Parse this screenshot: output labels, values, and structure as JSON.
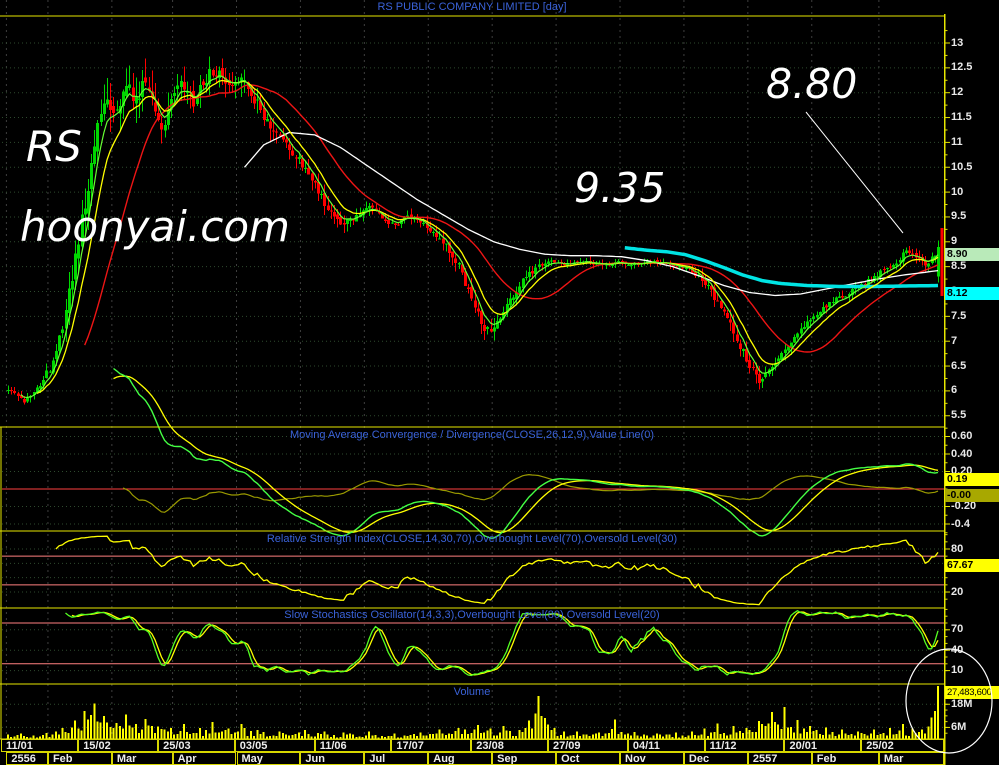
{
  "chart_data": {
    "type": "candlestick",
    "title": "RS PUBLIC COMPANY LIMITED [day]",
    "bars_total": 292,
    "y_axis": {
      "min": 5.5,
      "max": 13,
      "step": 0.5
    },
    "panels": {
      "macd": {
        "title": "Moving Average Convergence / Divergence(CLOSE,26,12,9),Value Line(0)"
      },
      "rsi": {
        "title": "Relative Strength Index(CLOSE,14,30,70),Overbought Level(70),Oversold Level(30)"
      },
      "stoch": {
        "title": "Slow Stochastics Oscillator(14,3,3),Overbought Level(80),Oversold Level(20)"
      },
      "volume": {
        "title": "Volume"
      }
    },
    "axis_labels": {
      "macd": [
        [
          "0.60",
          0.6
        ],
        [
          "0.40",
          0.4
        ],
        [
          "0.20",
          0.2
        ],
        [
          "-0.20",
          -0.2
        ],
        [
          "-0.4",
          -0.4
        ]
      ],
      "rsi": [
        [
          "80",
          80
        ],
        [
          "20",
          20
        ]
      ],
      "stoch": [
        [
          "70",
          70
        ],
        [
          "40",
          40
        ],
        [
          "10",
          10
        ]
      ],
      "volume": [
        [
          "18M",
          18
        ],
        [
          "6M",
          6
        ]
      ]
    },
    "levels": {
      "macd_zero": 0,
      "rsi": [
        70,
        30
      ],
      "stoch": [
        80,
        20
      ]
    },
    "tags": [
      {
        "id": "price",
        "text": "8.90",
        "bg": "#b9eab9",
        "value": 8.9
      },
      {
        "id": "ma200",
        "text": "8.12",
        "bg": "#00ffff",
        "value": 8.12
      },
      {
        "id": "macd",
        "text": "0.19",
        "bg": "#ffff00",
        "value": 0.19
      },
      {
        "id": "macd_zero",
        "text": "-0.00",
        "bg": "#a8a800",
        "value": 0.0
      },
      {
        "id": "rsi",
        "text": "67.67",
        "bg": "#ffff00",
        "value": 67.67
      },
      {
        "id": "volume",
        "text": "27,483,600",
        "bg": "#ffff00",
        "value": 27.4836
      }
    ],
    "annotations": {
      "ticker": "RS",
      "site": "hoonyai.com",
      "level1": "9.35",
      "level2": "8.80"
    },
    "months": {
      "labels": [
        "2556",
        "Feb",
        "Mar",
        "Apr",
        "May",
        "Jun",
        "Jul",
        "Aug",
        "Sep",
        "Oct",
        "Nov",
        "Dec",
        "2557",
        "Feb",
        "Mar"
      ],
      "start_bars": [
        0,
        13,
        33,
        52,
        72,
        92,
        112,
        132,
        152,
        172,
        192,
        212,
        232,
        252,
        273
      ]
    },
    "date_ticks": {
      "labels": [
        "11/01",
        "15/02",
        "25/03",
        "03/05",
        "11/06",
        "17/07",
        "23/08",
        "27/09",
        "04/11",
        "11/12",
        "20/01",
        "25/02"
      ],
      "bars": [
        0,
        24,
        49,
        73,
        98,
        122,
        147,
        171,
        196,
        220,
        245,
        269
      ]
    },
    "series_anchors": {
      "close": [
        [
          0,
          6.05,
          0.1
        ],
        [
          5,
          5.8,
          0.12
        ],
        [
          10,
          6.15,
          0.15
        ],
        [
          13,
          6.45,
          0.2
        ],
        [
          17,
          7.3,
          0.3
        ],
        [
          21,
          8.6,
          0.4
        ],
        [
          25,
          10.2,
          0.45
        ],
        [
          28,
          11.3,
          0.45
        ],
        [
          31,
          11.9,
          0.45
        ],
        [
          34,
          11.5,
          0.45
        ],
        [
          37,
          12.2,
          0.4
        ],
        [
          40,
          11.8,
          0.42
        ],
        [
          43,
          12.35,
          0.38
        ],
        [
          46,
          11.6,
          0.4
        ],
        [
          49,
          11.2,
          0.38
        ],
        [
          51,
          11.9,
          0.35
        ],
        [
          54,
          12.15,
          0.3
        ],
        [
          58,
          11.8,
          0.3
        ],
        [
          62,
          12.3,
          0.3
        ],
        [
          66,
          12.5,
          0.28
        ],
        [
          69,
          12.2,
          0.28
        ],
        [
          73,
          12.3,
          0.3
        ],
        [
          77,
          11.9,
          0.28
        ],
        [
          81,
          11.4,
          0.25
        ],
        [
          85,
          11.1,
          0.22
        ],
        [
          89,
          10.8,
          0.2
        ],
        [
          93,
          10.45,
          0.2
        ],
        [
          97,
          10.0,
          0.2
        ],
        [
          101,
          9.6,
          0.18
        ],
        [
          105,
          9.35,
          0.16
        ],
        [
          109,
          9.55,
          0.15
        ],
        [
          113,
          9.7,
          0.14
        ],
        [
          117,
          9.45,
          0.13
        ],
        [
          121,
          9.3,
          0.12
        ],
        [
          125,
          9.55,
          0.13
        ],
        [
          129,
          9.4,
          0.12
        ],
        [
          133,
          9.15,
          0.14
        ],
        [
          137,
          8.9,
          0.16
        ],
        [
          141,
          8.5,
          0.18
        ],
        [
          145,
          7.9,
          0.2
        ],
        [
          148,
          7.35,
          0.2
        ],
        [
          151,
          7.15,
          0.18
        ],
        [
          154,
          7.5,
          0.16
        ],
        [
          158,
          7.95,
          0.15
        ],
        [
          162,
          8.3,
          0.13
        ],
        [
          166,
          8.5,
          0.11
        ],
        [
          170,
          8.6,
          0.1
        ],
        [
          174,
          8.55,
          0.08
        ],
        [
          180,
          8.62,
          0.08
        ],
        [
          186,
          8.5,
          0.08
        ],
        [
          191,
          8.6,
          0.08
        ],
        [
          196,
          8.55,
          0.08
        ],
        [
          202,
          8.6,
          0.08
        ],
        [
          208,
          8.5,
          0.09
        ],
        [
          213,
          8.45,
          0.1
        ],
        [
          217,
          8.25,
          0.13
        ],
        [
          221,
          7.9,
          0.16
        ],
        [
          225,
          7.45,
          0.18
        ],
        [
          229,
          6.9,
          0.2
        ],
        [
          232,
          6.5,
          0.18
        ],
        [
          235,
          6.2,
          0.16
        ],
        [
          238,
          6.45,
          0.14
        ],
        [
          242,
          6.8,
          0.14
        ],
        [
          246,
          7.1,
          0.13
        ],
        [
          250,
          7.4,
          0.12
        ],
        [
          254,
          7.6,
          0.12
        ],
        [
          258,
          7.8,
          0.11
        ],
        [
          262,
          7.95,
          0.11
        ],
        [
          266,
          8.1,
          0.1
        ],
        [
          270,
          8.25,
          0.1
        ],
        [
          274,
          8.45,
          0.11
        ],
        [
          278,
          8.6,
          0.12
        ],
        [
          281,
          8.85,
          0.13
        ],
        [
          284,
          8.65,
          0.12
        ],
        [
          287,
          8.55,
          0.12
        ],
        [
          290,
          8.75,
          0.13
        ],
        [
          291,
          8.9,
          0.12
        ]
      ],
      "sma75_white": [
        [
          74,
          10.5
        ],
        [
          80,
          10.95
        ],
        [
          88,
          11.2
        ],
        [
          96,
          11.15
        ],
        [
          104,
          10.9
        ],
        [
          112,
          10.55
        ],
        [
          120,
          10.2
        ],
        [
          128,
          9.85
        ],
        [
          136,
          9.55
        ],
        [
          144,
          9.25
        ],
        [
          152,
          9.0
        ],
        [
          160,
          8.85
        ],
        [
          168,
          8.75
        ],
        [
          176,
          8.72
        ],
        [
          184,
          8.72
        ],
        [
          192,
          8.7
        ],
        [
          200,
          8.62
        ],
        [
          208,
          8.5
        ],
        [
          216,
          8.32
        ],
        [
          224,
          8.12
        ],
        [
          232,
          7.98
        ],
        [
          240,
          7.92
        ],
        [
          248,
          7.95
        ],
        [
          256,
          8.05
        ],
        [
          264,
          8.15
        ],
        [
          272,
          8.25
        ],
        [
          280,
          8.33
        ],
        [
          291,
          8.42
        ]
      ],
      "sma200_cyan": [
        [
          193,
          8.88
        ],
        [
          200,
          8.83
        ],
        [
          206,
          8.8
        ],
        [
          212,
          8.74
        ],
        [
          218,
          8.62
        ],
        [
          224,
          8.48
        ],
        [
          230,
          8.33
        ],
        [
          236,
          8.22
        ],
        [
          242,
          8.16
        ],
        [
          250,
          8.12
        ],
        [
          260,
          8.1
        ],
        [
          270,
          8.1
        ],
        [
          280,
          8.11
        ],
        [
          291,
          8.12
        ]
      ]
    },
    "volume_anchors": [
      [
        0,
        2.5
      ],
      [
        4,
        3
      ],
      [
        8,
        2
      ],
      [
        12,
        3.5
      ],
      [
        15,
        4
      ],
      [
        17,
        6
      ],
      [
        21,
        10
      ],
      [
        24,
        15
      ],
      [
        27,
        20
      ],
      [
        30,
        12
      ],
      [
        34,
        9
      ],
      [
        37,
        13
      ],
      [
        40,
        8
      ],
      [
        43,
        11
      ],
      [
        47,
        7
      ],
      [
        51,
        6
      ],
      [
        55,
        8
      ],
      [
        60,
        6
      ],
      [
        64,
        9
      ],
      [
        69,
        6
      ],
      [
        73,
        8
      ],
      [
        78,
        5
      ],
      [
        85,
        4
      ],
      [
        93,
        5
      ],
      [
        99,
        4
      ],
      [
        105,
        3.5
      ],
      [
        113,
        4
      ],
      [
        121,
        3
      ],
      [
        129,
        3.5
      ],
      [
        135,
        5
      ],
      [
        141,
        6
      ],
      [
        147,
        8
      ],
      [
        151,
        6
      ],
      [
        155,
        7
      ],
      [
        160,
        5
      ],
      [
        166,
        24
      ],
      [
        171,
        6
      ],
      [
        178,
        4
      ],
      [
        184,
        3
      ],
      [
        190,
        11
      ],
      [
        196,
        4
      ],
      [
        203,
        3
      ],
      [
        209,
        3.5
      ],
      [
        214,
        4
      ],
      [
        218,
        6
      ],
      [
        222,
        8
      ],
      [
        227,
        7
      ],
      [
        231,
        6
      ],
      [
        235,
        10
      ],
      [
        239,
        15
      ],
      [
        243,
        17
      ],
      [
        247,
        10
      ],
      [
        251,
        7
      ],
      [
        256,
        6
      ],
      [
        261,
        5
      ],
      [
        266,
        4
      ],
      [
        271,
        5
      ],
      [
        276,
        6
      ],
      [
        280,
        8
      ],
      [
        283,
        6
      ],
      [
        286,
        5
      ],
      [
        289,
        12
      ],
      [
        291,
        27.4836
      ]
    ],
    "colors": {
      "up": "#00d800",
      "down": "#ff0000",
      "ma_fast_green": "#66ff33",
      "ma_med_yellow": "#ffff00",
      "ma_slow_red": "#ee1515",
      "ma_long_white": "#ffffff",
      "ma_200_cyan": "#00e4e4",
      "level_line": "#ff8080",
      "zero_line": "#ff4040",
      "grid_vertical": "#3f3f3f",
      "grid_horizontal": "#2e4a2e",
      "axis_yellow": "#e6e600",
      "volume_bar": "#ffff00",
      "macd_line": "#44ff44",
      "macd_signal": "#ffff00",
      "macd_hist": "#9a9a00",
      "rsi_line": "#ffff00",
      "stoch_k": "#55ff22",
      "stoch_d": "#ffff00",
      "annotation_white": "#ffffff",
      "title_blue": "#3a62d8"
    }
  }
}
